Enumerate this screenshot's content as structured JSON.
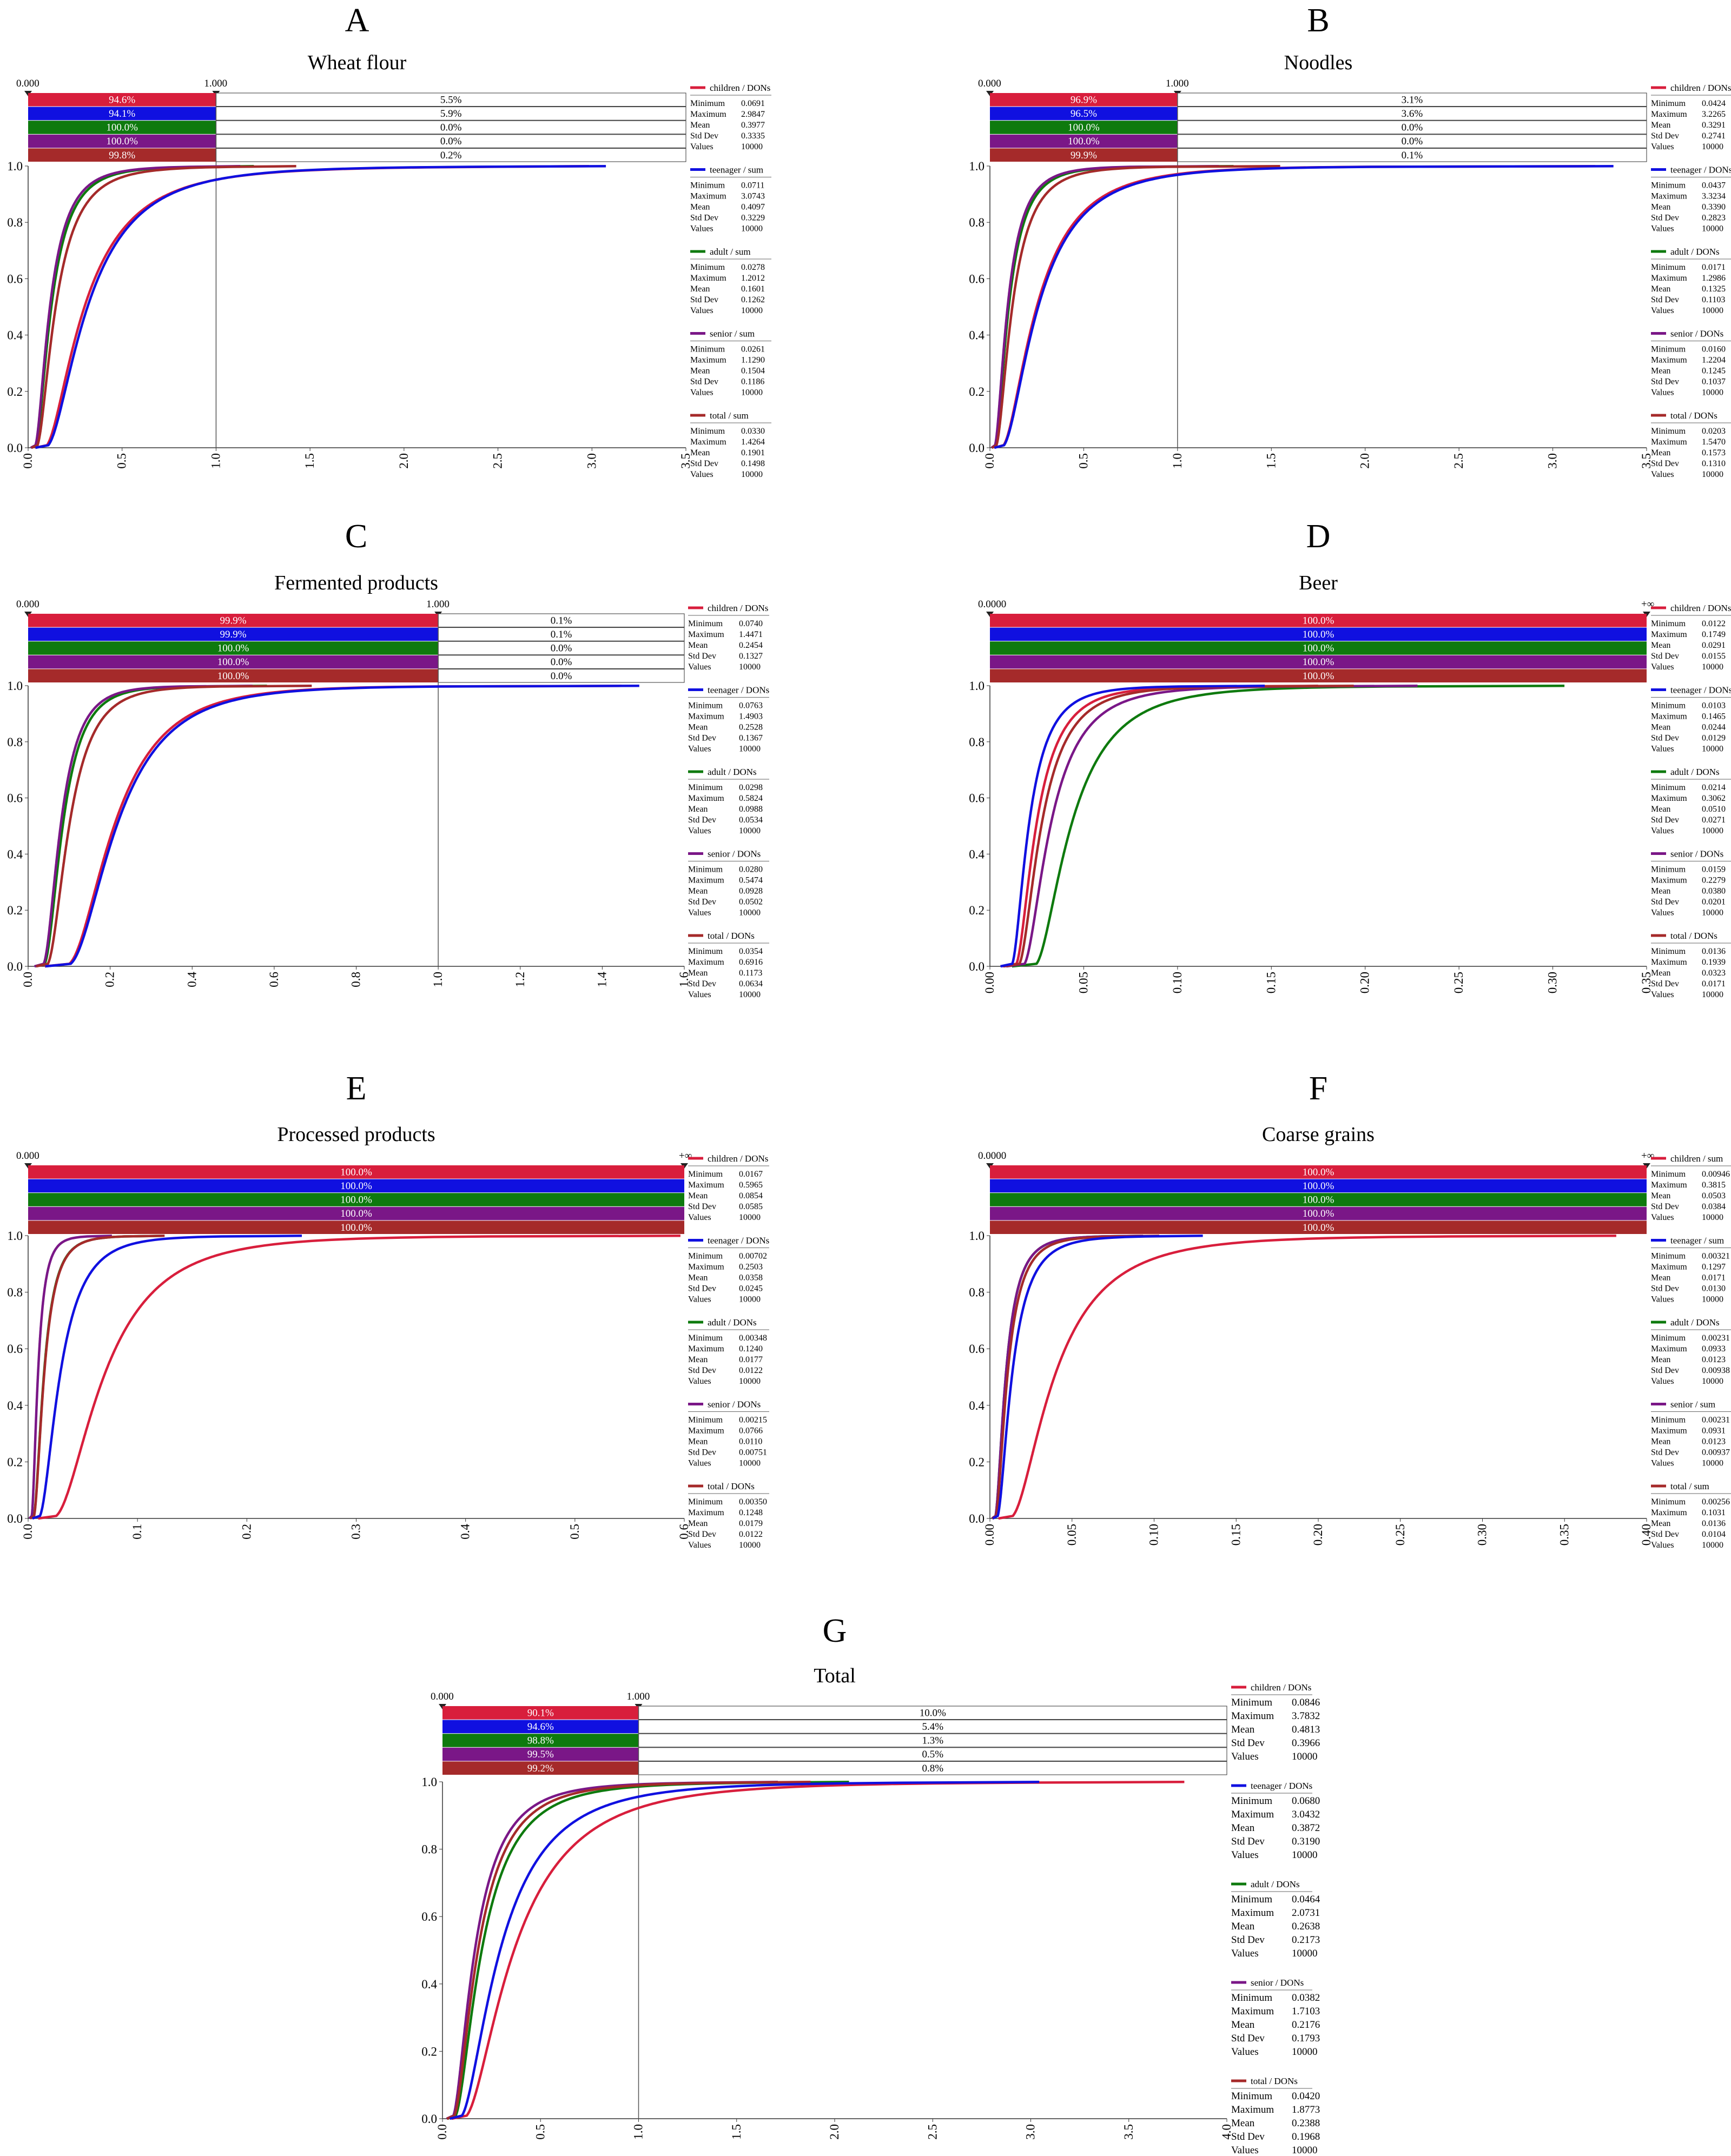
{
  "colors": {
    "children": "#d81e3c",
    "teenager": "#1010e0",
    "adult": "#0e7a0e",
    "senior": "#7a1787",
    "total": "#a52a2a",
    "grid": "#444444"
  },
  "stat_labels": [
    "Minimum",
    "Maximum",
    "Mean",
    "Std Dev",
    "Values"
  ],
  "chart_data": [
    {
      "letter": "A",
      "title": "Wheat flour",
      "type": "line",
      "xlim": [
        0,
        3.5
      ],
      "ylim": [
        0,
        1
      ],
      "threshold": 1.0,
      "xticks": [
        "0.0",
        "0.5",
        "1.0",
        "1.5",
        "2.0",
        "2.5",
        "3.0",
        "3.5"
      ],
      "yticks": [
        "0.0",
        "0.2",
        "0.4",
        "0.6",
        "0.8",
        "1.0"
      ],
      "bar_left": "0.000",
      "bar_right": "1.000",
      "left_pct": [
        "94.6%",
        "94.1%",
        "100.0%",
        "100.0%",
        "99.8%"
      ],
      "right_pct": [
        "5.5%",
        "5.9%",
        "0.0%",
        "0.0%",
        "0.2%"
      ],
      "series": [
        {
          "name": "children / DONs",
          "color": "#d81e3c",
          "min": "0.0691",
          "max": "2.9847",
          "mean": "0.3977",
          "sd": "0.3335",
          "values": "10000"
        },
        {
          "name": "teenager / sum",
          "color": "#1010e0",
          "min": "0.0711",
          "max": "3.0743",
          "mean": "0.4097",
          "sd": "0.3229",
          "values": "10000"
        },
        {
          "name": "adult / sum",
          "color": "#0e7a0e",
          "min": "0.0278",
          "max": "1.2012",
          "mean": "0.1601",
          "sd": "0.1262",
          "values": "10000"
        },
        {
          "name": "senior / sum",
          "color": "#7a1787",
          "min": "0.0261",
          "max": "1.1290",
          "mean": "0.1504",
          "sd": "0.1186",
          "values": "10000"
        },
        {
          "name": "total / sum",
          "color": "#a52a2a",
          "min": "0.0330",
          "max": "1.4264",
          "mean": "0.1901",
          "sd": "0.1498",
          "values": "10000"
        }
      ]
    },
    {
      "letter": "B",
      "title": "Noodles",
      "type": "line",
      "xlim": [
        0,
        3.5
      ],
      "ylim": [
        0,
        1
      ],
      "threshold": 1.0,
      "xticks": [
        "0.0",
        "0.5",
        "1.0",
        "1.5",
        "2.0",
        "2.5",
        "3.0",
        "3.5"
      ],
      "yticks": [
        "0.0",
        "0.2",
        "0.4",
        "0.6",
        "0.8",
        "1.0"
      ],
      "bar_left": "0.000",
      "bar_right": "1.000",
      "left_pct": [
        "96.9%",
        "96.5%",
        "100.0%",
        "100.0%",
        "99.9%"
      ],
      "right_pct": [
        "3.1%",
        "3.6%",
        "0.0%",
        "0.0%",
        "0.1%"
      ],
      "series": [
        {
          "name": "children / DONs",
          "color": "#d81e3c",
          "min": "0.0424",
          "max": "3.2265",
          "mean": "0.3291",
          "sd": "0.2741",
          "values": "10000"
        },
        {
          "name": "teenager / DONs",
          "color": "#1010e0",
          "min": "0.0437",
          "max": "3.3234",
          "mean": "0.3390",
          "sd": "0.2823",
          "values": "10000"
        },
        {
          "name": "adult / DONs",
          "color": "#0e7a0e",
          "min": "0.0171",
          "max": "1.2986",
          "mean": "0.1325",
          "sd": "0.1103",
          "values": "10000"
        },
        {
          "name": "senior / DONs",
          "color": "#7a1787",
          "min": "0.0160",
          "max": "1.2204",
          "mean": "0.1245",
          "sd": "0.1037",
          "values": "10000"
        },
        {
          "name": "total / DONs",
          "color": "#a52a2a",
          "min": "0.0203",
          "max": "1.5470",
          "mean": "0.1573",
          "sd": "0.1310",
          "values": "10000"
        }
      ]
    },
    {
      "letter": "C",
      "title": "Fermented products",
      "type": "line",
      "xlim": [
        0,
        1.6
      ],
      "ylim": [
        0,
        1
      ],
      "threshold": 1.0,
      "xticks": [
        "0.0",
        "0.2",
        "0.4",
        "0.6",
        "0.8",
        "1.0",
        "1.2",
        "1.4",
        "1.6"
      ],
      "yticks": [
        "0.0",
        "0.2",
        "0.4",
        "0.6",
        "0.8",
        "1.0"
      ],
      "bar_left": "0.000",
      "bar_right": "1.000",
      "left_pct": [
        "99.9%",
        "99.9%",
        "100.0%",
        "100.0%",
        "100.0%"
      ],
      "right_pct": [
        "0.1%",
        "0.1%",
        "0.0%",
        "0.0%",
        "0.0%"
      ],
      "series": [
        {
          "name": "children / DONs",
          "color": "#d81e3c",
          "min": "0.0740",
          "max": "1.4471",
          "mean": "0.2454",
          "sd": "0.1327",
          "values": "10000"
        },
        {
          "name": "teenager / DONs",
          "color": "#1010e0",
          "min": "0.0763",
          "max": "1.4903",
          "mean": "0.2528",
          "sd": "0.1367",
          "values": "10000"
        },
        {
          "name": "adult / DONs",
          "color": "#0e7a0e",
          "min": "0.0298",
          "max": "0.5824",
          "mean": "0.0988",
          "sd": "0.0534",
          "values": "10000"
        },
        {
          "name": "senior / DONs",
          "color": "#7a1787",
          "min": "0.0280",
          "max": "0.5474",
          "mean": "0.0928",
          "sd": "0.0502",
          "values": "10000"
        },
        {
          "name": "total / DONs",
          "color": "#a52a2a",
          "min": "0.0354",
          "max": "0.6916",
          "mean": "0.1173",
          "sd": "0.0634",
          "values": "10000"
        }
      ]
    },
    {
      "letter": "D",
      "title": "Beer",
      "type": "line",
      "xlim": [
        0,
        0.35
      ],
      "ylim": [
        0,
        1
      ],
      "threshold": null,
      "xticks": [
        "0.00",
        "0.05",
        "0.10",
        "0.15",
        "0.20",
        "0.25",
        "0.30",
        "0.35"
      ],
      "yticks": [
        "0.0",
        "0.2",
        "0.4",
        "0.6",
        "0.8",
        "1.0"
      ],
      "bar_left": "0.0000",
      "bar_right": "+∞",
      "left_pct": [
        "100.0%",
        "100.0%",
        "100.0%",
        "100.0%",
        "100.0%"
      ],
      "right_pct": [],
      "series": [
        {
          "name": "children / DONs",
          "color": "#d81e3c",
          "min": "0.0122",
          "max": "0.1749",
          "mean": "0.0291",
          "sd": "0.0155",
          "values": "10000"
        },
        {
          "name": "teenager / DONs",
          "color": "#1010e0",
          "min": "0.0103",
          "max": "0.1465",
          "mean": "0.0244",
          "sd": "0.0129",
          "values": "10000"
        },
        {
          "name": "adult / DONs",
          "color": "#0e7a0e",
          "min": "0.0214",
          "max": "0.3062",
          "mean": "0.0510",
          "sd": "0.0271",
          "values": "10000"
        },
        {
          "name": "senior / DONs",
          "color": "#7a1787",
          "min": "0.0159",
          "max": "0.2279",
          "mean": "0.0380",
          "sd": "0.0201",
          "values": "10000"
        },
        {
          "name": "total / DONs",
          "color": "#a52a2a",
          "min": "0.0136",
          "max": "0.1939",
          "mean": "0.0323",
          "sd": "0.0171",
          "values": "10000"
        }
      ]
    },
    {
      "letter": "E",
      "title": "Processed products",
      "type": "line",
      "xlim": [
        0,
        0.6
      ],
      "ylim": [
        0,
        1
      ],
      "threshold": null,
      "xticks": [
        "0.0",
        "0.1",
        "0.2",
        "0.3",
        "0.4",
        "0.5",
        "0.6"
      ],
      "yticks": [
        "0.0",
        "0.2",
        "0.4",
        "0.6",
        "0.8",
        "1.0"
      ],
      "bar_left": "0.000",
      "bar_right": "+∞",
      "left_pct": [
        "100.0%",
        "100.0%",
        "100.0%",
        "100.0%",
        "100.0%"
      ],
      "right_pct": [],
      "series": [
        {
          "name": "children / DONs",
          "color": "#d81e3c",
          "min": "0.0167",
          "max": "0.5965",
          "mean": "0.0854",
          "sd": "0.0585",
          "values": "10000"
        },
        {
          "name": "teenager / DONs",
          "color": "#1010e0",
          "min": "0.00702",
          "max": "0.2503",
          "mean": "0.0358",
          "sd": "0.0245",
          "values": "10000"
        },
        {
          "name": "adult / DONs",
          "color": "#0e7a0e",
          "min": "0.00348",
          "max": "0.1240",
          "mean": "0.0177",
          "sd": "0.0122",
          "values": "10000"
        },
        {
          "name": "senior / DONs",
          "color": "#7a1787",
          "min": "0.00215",
          "max": "0.0766",
          "mean": "0.0110",
          "sd": "0.00751",
          "values": "10000"
        },
        {
          "name": "total / DONs",
          "color": "#a52a2a",
          "min": "0.00350",
          "max": "0.1248",
          "mean": "0.0179",
          "sd": "0.0122",
          "values": "10000"
        }
      ]
    },
    {
      "letter": "F",
      "title": "Coarse grains",
      "type": "line",
      "xlim": [
        0,
        0.4
      ],
      "ylim": [
        0,
        1
      ],
      "threshold": null,
      "xticks": [
        "0.00",
        "0.05",
        "0.10",
        "0.15",
        "0.20",
        "0.25",
        "0.30",
        "0.35",
        "0.40"
      ],
      "yticks": [
        "0.0",
        "0.2",
        "0.4",
        "0.6",
        "0.8",
        "1.0"
      ],
      "bar_left": "0.0000",
      "bar_right": "+∞",
      "left_pct": [
        "100.0%",
        "100.0%",
        "100.0%",
        "100.0%",
        "100.0%"
      ],
      "right_pct": [],
      "series": [
        {
          "name": "children / sum",
          "color": "#d81e3c",
          "min": "0.00946",
          "max": "0.3815",
          "mean": "0.0503",
          "sd": "0.0384",
          "values": "10000"
        },
        {
          "name": "teenager / sum",
          "color": "#1010e0",
          "min": "0.00321",
          "max": "0.1297",
          "mean": "0.0171",
          "sd": "0.0130",
          "values": "10000"
        },
        {
          "name": "adult / DONs",
          "color": "#0e7a0e",
          "min": "0.00231",
          "max": "0.0933",
          "mean": "0.0123",
          "sd": "0.00938",
          "values": "10000"
        },
        {
          "name": "senior / sum",
          "color": "#7a1787",
          "min": "0.00231",
          "max": "0.0931",
          "mean": "0.0123",
          "sd": "0.00937",
          "values": "10000"
        },
        {
          "name": "total / sum",
          "color": "#a52a2a",
          "min": "0.00256",
          "max": "0.1031",
          "mean": "0.0136",
          "sd": "0.0104",
          "values": "10000"
        }
      ]
    },
    {
      "letter": "G",
      "title": "Total",
      "type": "line",
      "xlim": [
        0,
        4.0
      ],
      "ylim": [
        0,
        1
      ],
      "threshold": 1.0,
      "xticks": [
        "0.0",
        "0.5",
        "1.0",
        "1.5",
        "2.0",
        "2.5",
        "3.0",
        "3.5",
        "4.0"
      ],
      "yticks": [
        "0.0",
        "0.2",
        "0.4",
        "0.6",
        "0.8",
        "1.0"
      ],
      "bar_left": "0.000",
      "bar_right": "1.000",
      "left_pct": [
        "90.1%",
        "94.6%",
        "98.8%",
        "99.5%",
        "99.2%"
      ],
      "right_pct": [
        "10.0%",
        "5.4%",
        "1.3%",
        "0.5%",
        "0.8%"
      ],
      "series": [
        {
          "name": "children / DONs",
          "color": "#d81e3c",
          "min": "0.0846",
          "max": "3.7832",
          "mean": "0.4813",
          "sd": "0.3966",
          "values": "10000"
        },
        {
          "name": "teenager / DONs",
          "color": "#1010e0",
          "min": "0.0680",
          "max": "3.0432",
          "mean": "0.3872",
          "sd": "0.3190",
          "values": "10000"
        },
        {
          "name": "adult / DONs",
          "color": "#0e7a0e",
          "min": "0.0464",
          "max": "2.0731",
          "mean": "0.2638",
          "sd": "0.2173",
          "values": "10000"
        },
        {
          "name": "senior / DONs",
          "color": "#7a1787",
          "min": "0.0382",
          "max": "1.7103",
          "mean": "0.2176",
          "sd": "0.1793",
          "values": "10000"
        },
        {
          "name": "total / DONs",
          "color": "#a52a2a",
          "min": "0.0420",
          "max": "1.8773",
          "mean": "0.2388",
          "sd": "0.1968",
          "values": "10000"
        }
      ]
    }
  ]
}
